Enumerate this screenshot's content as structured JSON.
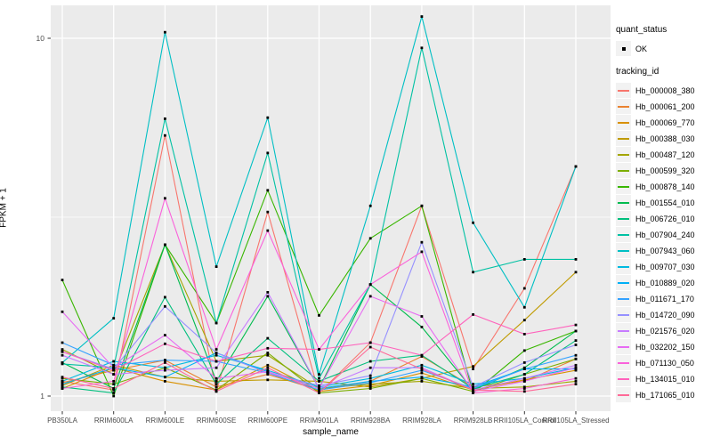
{
  "axes": {
    "x_title": "sample_name",
    "y_title": "FPKM + 1",
    "y_tick_labels": [
      "10",
      "1"
    ]
  },
  "legend": {
    "quant_status_title": "quant_status",
    "ok_label": "OK",
    "tracking_title": "tracking_id"
  },
  "chart_data": {
    "type": "line",
    "title": "",
    "xlabel": "sample_name",
    "ylabel": "FPKM + 1",
    "y_scale": "log10",
    "ylim": [
      0.95,
      13
    ],
    "y_ticks": [
      10,
      1
    ],
    "y_minor": [
      3.162
    ],
    "grid": true,
    "legend_position": "right",
    "marker": "black-square",
    "panel_bg": "#EBEBEB",
    "grid_color": "#FFFFFF",
    "categories": [
      "PB350LA",
      "RRIM600LA",
      "RRIM600LE",
      "RRIM600SE",
      "RRIM600PE",
      "RRIM901LA",
      "RRIM928BA",
      "RRIM928LA",
      "RRIM928LB",
      "RRII105LA_Control",
      "RRII105LA_Stressed"
    ],
    "series": [
      {
        "name": "Hb_000008_380",
        "color": "#F8766D",
        "values": [
          1.1,
          1.04,
          5.35,
          1.03,
          3.27,
          1.02,
          1.41,
          3.4,
          1.19,
          2.0,
          4.38
        ]
      },
      {
        "name": "Hb_000061_200",
        "color": "#EA8331",
        "values": [
          1.09,
          1.18,
          1.26,
          1.06,
          1.15,
          1.04,
          1.1,
          1.29,
          1.06,
          1.1,
          1.27
        ]
      },
      {
        "name": "Hb_000069_770",
        "color": "#D89000",
        "values": [
          1.05,
          1.2,
          1.1,
          1.04,
          1.22,
          1.03,
          1.07,
          1.16,
          1.04,
          1.11,
          1.18
        ]
      },
      {
        "name": "Hb_000388_030",
        "color": "#C09B00",
        "values": [
          1.07,
          1.22,
          1.13,
          1.1,
          1.11,
          1.1,
          1.06,
          1.12,
          1.21,
          1.63,
          2.22
        ]
      },
      {
        "name": "Hb_000487_120",
        "color": "#A3A500",
        "values": [
          1.35,
          1.15,
          2.65,
          1.25,
          1.3,
          1.05,
          1.08,
          1.1,
          1.05,
          1.06,
          1.1
        ]
      },
      {
        "name": "Hb_000599_320",
        "color": "#7CAE00",
        "values": [
          1.12,
          1.08,
          1.2,
          1.04,
          1.32,
          1.02,
          1.05,
          1.12,
          1.03,
          1.15,
          1.27
        ]
      },
      {
        "name": "Hb_000878_140",
        "color": "#39B600",
        "values": [
          2.11,
          1.0,
          2.65,
          1.6,
          3.76,
          1.68,
          2.76,
          3.4,
          1.02,
          1.34,
          1.52
        ]
      },
      {
        "name": "Hb_001554_010",
        "color": "#00BB4E",
        "values": [
          1.24,
          1.05,
          2.65,
          1.1,
          1.9,
          1.05,
          2.05,
          1.56,
          1.04,
          1.2,
          1.52
        ]
      },
      {
        "name": "Hb_006726_010",
        "color": "#00BF7D",
        "values": [
          1.06,
          1.02,
          1.89,
          1.08,
          1.45,
          1.1,
          1.25,
          1.3,
          1.05,
          1.15,
          1.43
        ]
      },
      {
        "name": "Hb_007904_240",
        "color": "#00C1A3",
        "values": [
          1.23,
          1.2,
          5.96,
          1.6,
          4.78,
          1.12,
          2.05,
          9.4,
          2.22,
          2.41,
          2.41
        ]
      },
      {
        "name": "Hb_007943_060",
        "color": "#00BFC4",
        "values": [
          1.24,
          1.65,
          10.4,
          2.3,
          6.0,
          1.15,
          3.4,
          11.5,
          3.05,
          1.77,
          4.38
        ]
      },
      {
        "name": "Hb_009707_030",
        "color": "#00BAE0",
        "values": [
          1.1,
          1.25,
          1.2,
          1.3,
          1.18,
          1.06,
          1.12,
          1.22,
          1.08,
          1.12,
          1.2
        ]
      },
      {
        "name": "Hb_010889_020",
        "color": "#00B0F6",
        "values": [
          1.08,
          1.2,
          1.13,
          1.32,
          1.17,
          1.05,
          1.1,
          1.13,
          1.06,
          1.19,
          1.19
        ]
      },
      {
        "name": "Hb_011671_170",
        "color": "#35A2FF",
        "values": [
          1.41,
          1.22,
          1.26,
          1.25,
          1.16,
          1.04,
          1.09,
          1.18,
          1.05,
          1.19,
          1.3
        ]
      },
      {
        "name": "Hb_014720_090",
        "color": "#9590FF",
        "values": [
          1.33,
          1.19,
          1.78,
          1.32,
          1.16,
          1.07,
          1.14,
          2.69,
          1.06,
          1.24,
          1.39
        ]
      },
      {
        "name": "Hb_021576_020",
        "color": "#C77CFF",
        "values": [
          1.3,
          1.15,
          1.18,
          1.2,
          1.95,
          1.05,
          1.2,
          1.2,
          1.04,
          1.12,
          1.22
        ]
      },
      {
        "name": "Hb_032202_150",
        "color": "#E76BF3",
        "values": [
          1.72,
          1.2,
          1.48,
          1.12,
          1.17,
          1.05,
          1.9,
          1.67,
          1.03,
          1.1,
          1.2
        ]
      },
      {
        "name": "Hb_071130_050",
        "color": "#FA62DB",
        "values": [
          1.05,
          1.1,
          3.57,
          1.35,
          2.9,
          1.35,
          2.05,
          2.53,
          1.02,
          1.05,
          1.12
        ]
      },
      {
        "name": "Hb_134015_010",
        "color": "#FF62BC",
        "values": [
          1.33,
          1.18,
          1.4,
          1.25,
          1.36,
          1.35,
          1.41,
          1.3,
          1.69,
          1.49,
          1.58
        ]
      },
      {
        "name": "Hb_171065_010",
        "color": "#FF6A98",
        "values": [
          1.13,
          1.05,
          1.24,
          1.03,
          1.2,
          1.02,
          1.37,
          1.19,
          1.04,
          1.03,
          1.08
        ]
      }
    ]
  }
}
